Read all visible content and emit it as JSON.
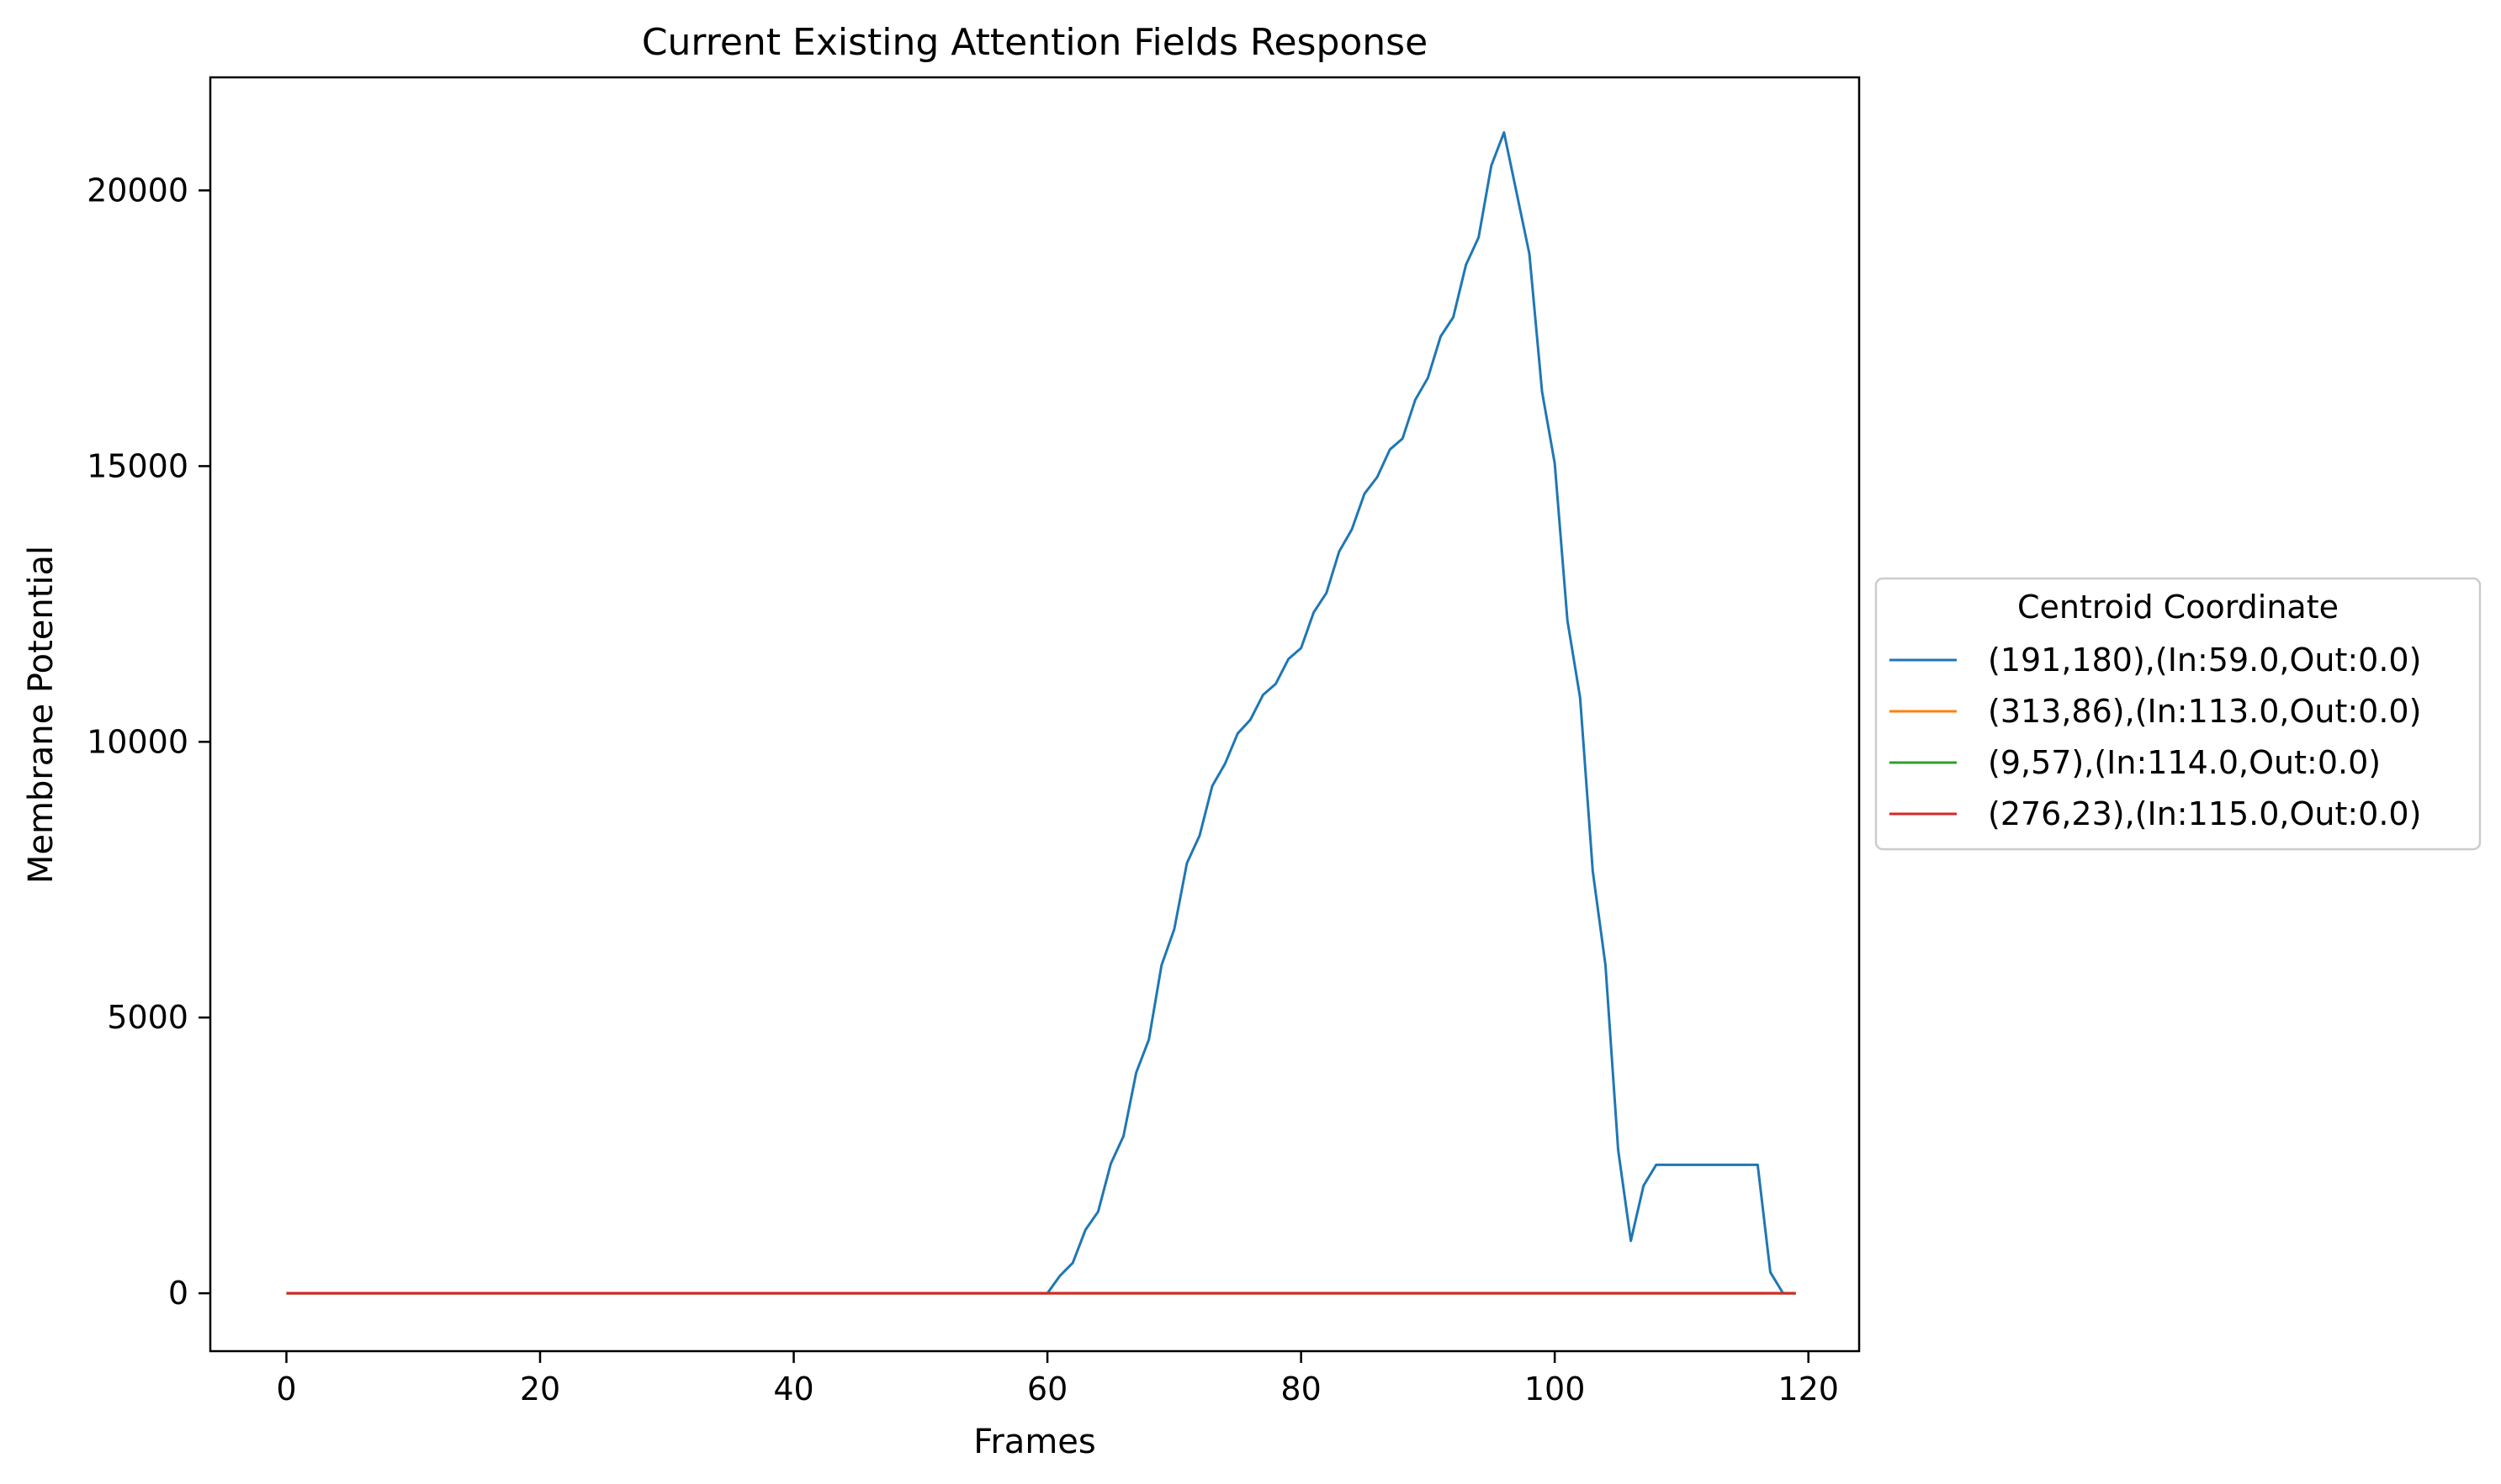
{
  "chart_data": {
    "type": "line",
    "title": "Current Existing Attention Fields Response",
    "xlabel": "Frames",
    "ylabel": "Membrane Potential",
    "xlim": [
      -6,
      124
    ],
    "ylim": [
      -1050,
      22050
    ],
    "xticks": [
      0,
      20,
      40,
      60,
      80,
      100,
      120
    ],
    "yticks": [
      0,
      5000,
      10000,
      15000,
      20000
    ],
    "grid": false,
    "legend": {
      "title": "Centroid Coordinate",
      "placement": "outside-right"
    },
    "series": [
      {
        "name": "(191,180),(In:59.0,Out:0.0)",
        "color": "#1f77b4",
        "x": [
          0,
          60,
          61,
          62,
          63,
          64,
          65,
          66,
          67,
          68,
          69,
          70,
          71,
          72,
          73,
          74,
          75,
          76,
          77,
          78,
          79,
          80,
          81,
          82,
          83,
          84,
          85,
          86,
          87,
          88,
          89,
          90,
          91,
          92,
          93,
          94,
          95,
          96,
          97,
          98,
          99,
          100,
          101,
          102,
          103,
          104,
          105,
          106,
          107,
          108,
          109,
          110,
          111,
          112,
          113,
          114,
          115,
          116,
          117,
          118,
          119
        ],
        "y": [
          0,
          0,
          320,
          550,
          1150,
          1480,
          2350,
          2850,
          4000,
          4600,
          5950,
          6600,
          7800,
          8300,
          9200,
          9600,
          10150,
          10400,
          10850,
          11050,
          11500,
          11700,
          12350,
          12700,
          13450,
          13850,
          14500,
          14800,
          15300,
          15500,
          16200,
          16600,
          17350,
          17700,
          18650,
          19150,
          20450,
          21050,
          19950,
          18850,
          16350,
          15050,
          12200,
          10800,
          7650,
          5950,
          2600,
          950,
          1950,
          2330,
          2330,
          2330,
          2330,
          2330,
          2330,
          2330,
          2330,
          2330,
          380,
          0,
          0
        ]
      },
      {
        "name": "(313,86),(In:113.0,Out:0.0)",
        "color": "#ff7f0e",
        "x": [
          0,
          119
        ],
        "y": [
          0,
          0
        ]
      },
      {
        "name": "(9,57),(In:114.0,Out:0.0)",
        "color": "#2ca02c",
        "x": [
          0,
          119
        ],
        "y": [
          0,
          0
        ]
      },
      {
        "name": "(276,23),(In:115.0,Out:0.0)",
        "color": "#d62728",
        "x": [
          0,
          119
        ],
        "y": [
          0,
          0
        ]
      }
    ]
  }
}
